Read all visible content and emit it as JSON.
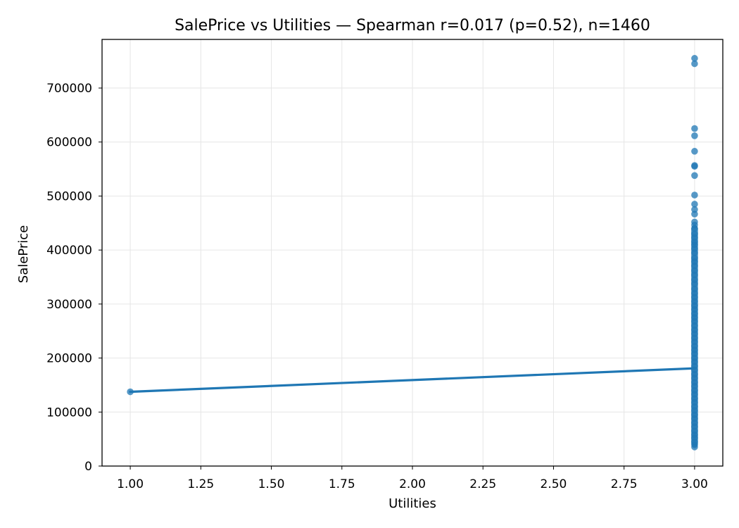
{
  "chart_data": {
    "type": "scatter",
    "title": "SalePrice vs Utilities — Spearman r=0.017 (p=0.52), n=1460",
    "xlabel": "Utilities",
    "ylabel": "SalePrice",
    "xlim": [
      0.9,
      3.1
    ],
    "ylim": [
      0,
      790000
    ],
    "grid": true,
    "x_ticks": [
      1.0,
      1.25,
      1.5,
      1.75,
      2.0,
      2.25,
      2.5,
      2.75,
      3.0
    ],
    "x_tick_labels": [
      "1.00",
      "1.25",
      "1.50",
      "1.75",
      "2.00",
      "2.25",
      "2.50",
      "2.75",
      "3.00"
    ],
    "y_ticks": [
      0,
      100000,
      200000,
      300000,
      400000,
      500000,
      600000,
      700000
    ],
    "y_tick_labels": [
      "0",
      "100000",
      "200000",
      "300000",
      "400000",
      "500000",
      "600000",
      "700000"
    ],
    "colors": {
      "points": "#1f77b4",
      "line": "#1f77b4",
      "grid": "#e6e6e6"
    },
    "series": [
      {
        "kind": "scatter",
        "points": [
          {
            "x": 1,
            "y": 137500
          },
          {
            "x": 3,
            "y": 755000
          },
          {
            "x": 3,
            "y": 745000
          },
          {
            "x": 3,
            "y": 625000
          },
          {
            "x": 3,
            "y": 611657
          },
          {
            "x": 3,
            "y": 582933
          },
          {
            "x": 3,
            "y": 556581
          },
          {
            "x": 3,
            "y": 555000
          },
          {
            "x": 3,
            "y": 538000
          },
          {
            "x": 3,
            "y": 501837
          },
          {
            "x": 3,
            "y": 485000
          },
          {
            "x": 3,
            "y": 475000
          },
          {
            "x": 3,
            "y": 466500
          },
          {
            "x": 3,
            "y": 451950
          },
          {
            "x": 3,
            "y": 446261
          },
          {
            "x": 3,
            "y": 440000
          },
          {
            "x": 3,
            "y": 430000
          },
          {
            "x": 3,
            "y": 423000
          },
          {
            "x": 3,
            "y": 415298
          },
          {
            "x": 3,
            "y": 410000
          },
          {
            "x": 3,
            "y": 402861
          },
          {
            "x": 3,
            "y": 395000
          },
          {
            "x": 3,
            "y": 385000
          },
          {
            "x": 3,
            "y": 378500
          },
          {
            "x": 3,
            "y": 370878
          },
          {
            "x": 3,
            "y": 361919
          },
          {
            "x": 3,
            "y": 354000
          },
          {
            "x": 3,
            "y": 345000
          },
          {
            "x": 3,
            "y": 337500
          },
          {
            "x": 3,
            "y": 328000
          },
          {
            "x": 3,
            "y": 320000
          },
          {
            "x": 3,
            "y": 312500
          },
          {
            "x": 3,
            "y": 305000
          },
          {
            "x": 3,
            "y": 297000
          },
          {
            "x": 3,
            "y": 290000
          },
          {
            "x": 3,
            "y": 282000
          },
          {
            "x": 3,
            "y": 275000
          },
          {
            "x": 3,
            "y": 268000
          },
          {
            "x": 3,
            "y": 260000
          },
          {
            "x": 3,
            "y": 252000
          },
          {
            "x": 3,
            "y": 245000
          },
          {
            "x": 3,
            "y": 237000
          },
          {
            "x": 3,
            "y": 230000
          },
          {
            "x": 3,
            "y": 222000
          },
          {
            "x": 3,
            "y": 215000
          },
          {
            "x": 3,
            "y": 208000
          },
          {
            "x": 3,
            "y": 200000
          },
          {
            "x": 3,
            "y": 193000
          },
          {
            "x": 3,
            "y": 185000
          },
          {
            "x": 3,
            "y": 178000
          },
          {
            "x": 3,
            "y": 170000
          },
          {
            "x": 3,
            "y": 163000
          },
          {
            "x": 3,
            "y": 155000
          },
          {
            "x": 3,
            "y": 148000
          },
          {
            "x": 3,
            "y": 140000
          },
          {
            "x": 3,
            "y": 133000
          },
          {
            "x": 3,
            "y": 125000
          },
          {
            "x": 3,
            "y": 118000
          },
          {
            "x": 3,
            "y": 110000
          },
          {
            "x": 3,
            "y": 103000
          },
          {
            "x": 3,
            "y": 95000
          },
          {
            "x": 3,
            "y": 88000
          },
          {
            "x": 3,
            "y": 80000
          },
          {
            "x": 3,
            "y": 73000
          },
          {
            "x": 3,
            "y": 65000
          },
          {
            "x": 3,
            "y": 58000
          },
          {
            "x": 3,
            "y": 52000
          },
          {
            "x": 3,
            "y": 45000
          },
          {
            "x": 3,
            "y": 39300
          },
          {
            "x": 3,
            "y": 35311
          }
        ]
      },
      {
        "kind": "line",
        "points": [
          {
            "x": 1,
            "y": 137500
          },
          {
            "x": 3,
            "y": 180950
          }
        ]
      }
    ]
  }
}
